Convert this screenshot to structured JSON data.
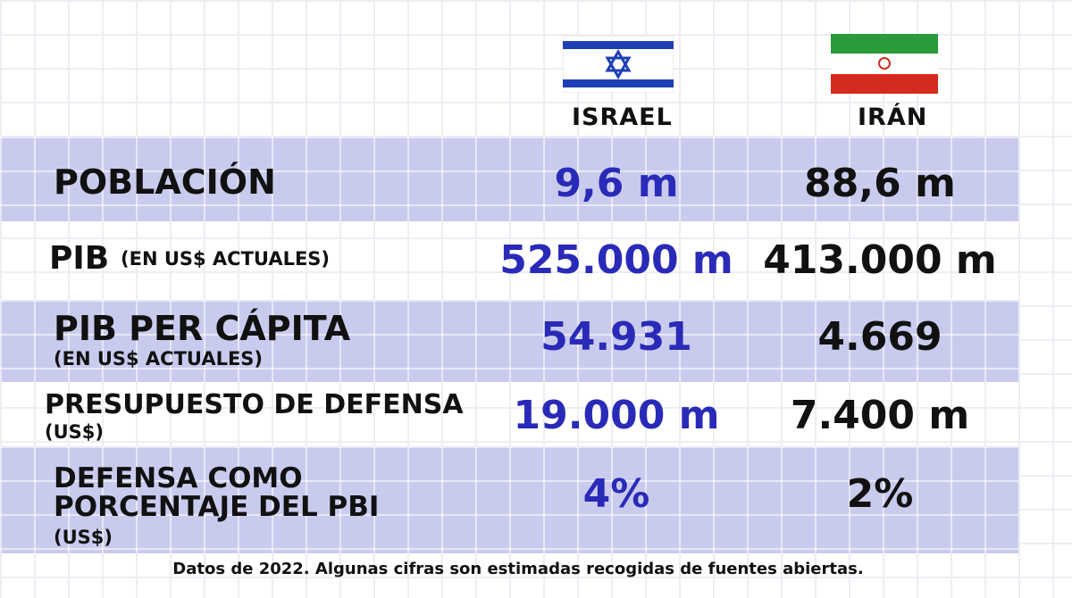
{
  "table": {
    "columns": [
      "ISRAEL",
      "IRÁN"
    ],
    "rows": [
      {
        "label": [
          "POBLACIÓN"
        ],
        "israel": "9,6 m",
        "iran": "88,6 m"
      },
      {
        "label": [
          "PIB"
        ],
        "sub": "(EN US$ ACTUALES)",
        "israel": "525.000 m",
        "iran": "413.000 m"
      },
      {
        "label": [
          "PIB PER CÁPITA"
        ],
        "sub": "(EN US$ ACTUALES)",
        "israel": "54.931",
        "iran": "4.669"
      },
      {
        "label": [
          "PRESUPUESTO DE DEFENSA"
        ],
        "sub": "(US$)",
        "israel": "19.000 m",
        "iran": "7.400 m"
      },
      {
        "label": [
          "DEFENSA COMO",
          "PORCENTAJE DEL PBI"
        ],
        "sub": "(US$)",
        "israel": "4%",
        "iran": "2%"
      }
    ],
    "footnote": "Datos de 2022. Algunas cifras son estimadas recogidas de fuentes abiertas."
  }
}
